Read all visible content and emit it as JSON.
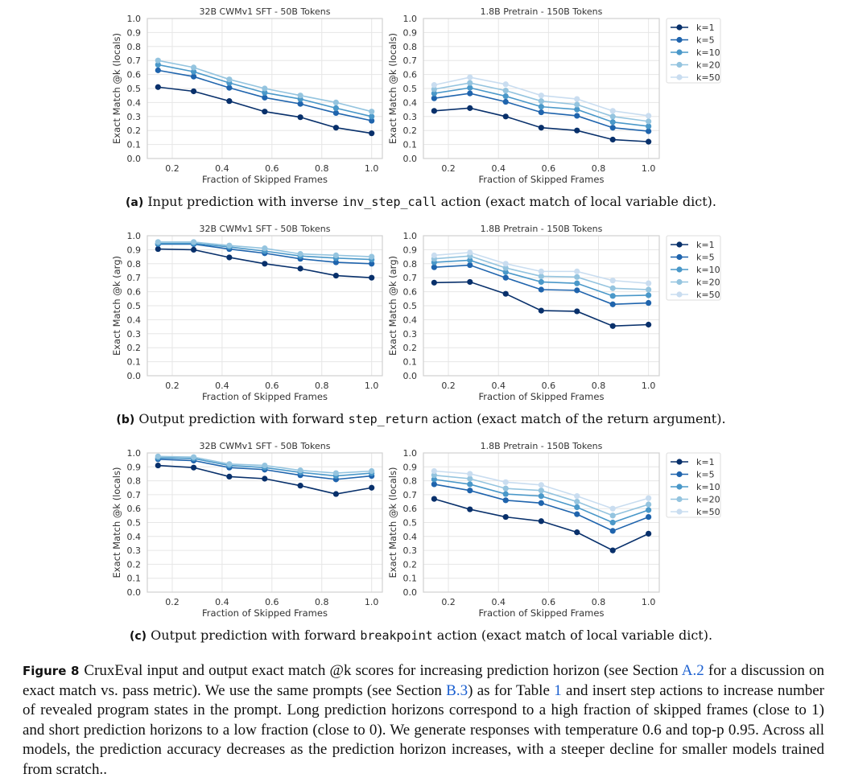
{
  "colors": {
    "k=1": "#08306b",
    "k=5": "#1f64ad",
    "k=10": "#4a98c9",
    "k=20": "#94c4df",
    "k=50": "#c9ddf0"
  },
  "chart_data": [
    {
      "type": "line",
      "panel": "a-left",
      "title": "32B CWMv1 SFT - 50B Tokens",
      "xlabel": "Fraction of Skipped Frames",
      "ylabel": "Exact Match @k (locals)",
      "xlim": [
        0.1,
        1.043
      ],
      "ylim": [
        0,
        1
      ],
      "grid": true,
      "xticks": [
        "0.2",
        "0.4",
        "0.6",
        "0.8",
        "1.0"
      ],
      "yticks": [
        "0.0",
        "0.1",
        "0.2",
        "0.3",
        "0.4",
        "0.5",
        "0.6",
        "0.7",
        "0.8",
        "0.9",
        "1.0"
      ],
      "x": [
        0.143,
        0.286,
        0.429,
        0.571,
        0.714,
        0.857,
        1.0
      ],
      "series": [
        {
          "name": "k=1",
          "values": [
            0.51,
            0.48,
            0.41,
            0.335,
            0.295,
            0.22,
            0.18
          ]
        },
        {
          "name": "k=5",
          "values": [
            0.63,
            0.585,
            0.505,
            0.435,
            0.39,
            0.325,
            0.27
          ]
        },
        {
          "name": "k=10",
          "values": [
            0.67,
            0.62,
            0.54,
            0.47,
            0.425,
            0.36,
            0.3
          ]
        },
        {
          "name": "k=20",
          "values": [
            0.7,
            0.65,
            0.565,
            0.5,
            0.45,
            0.4,
            0.335
          ]
        }
      ]
    },
    {
      "type": "line",
      "panel": "a-right",
      "title": "1.8B Pretrain - 150B Tokens",
      "xlabel": "Fraction of Skipped Frames",
      "ylabel": "Exact Match @k (locals)",
      "xlim": [
        0.1,
        1.043
      ],
      "ylim": [
        0,
        1
      ],
      "grid": true,
      "legend": "outside-top-right",
      "xticks": [
        "0.2",
        "0.4",
        "0.6",
        "0.8",
        "1.0"
      ],
      "yticks": [
        "0.0",
        "0.1",
        "0.2",
        "0.3",
        "0.4",
        "0.5",
        "0.6",
        "0.7",
        "0.8",
        "0.9",
        "1.0"
      ],
      "x": [
        0.143,
        0.286,
        0.429,
        0.571,
        0.714,
        0.857,
        1.0
      ],
      "series": [
        {
          "name": "k=1",
          "values": [
            0.34,
            0.36,
            0.3,
            0.22,
            0.2,
            0.135,
            0.12
          ]
        },
        {
          "name": "k=5",
          "values": [
            0.43,
            0.465,
            0.405,
            0.33,
            0.305,
            0.22,
            0.195
          ]
        },
        {
          "name": "k=10",
          "values": [
            0.465,
            0.505,
            0.445,
            0.37,
            0.35,
            0.26,
            0.23
          ]
        },
        {
          "name": "k=20",
          "values": [
            0.495,
            0.54,
            0.485,
            0.41,
            0.385,
            0.3,
            0.265
          ]
        },
        {
          "name": "k=50",
          "values": [
            0.525,
            0.58,
            0.53,
            0.45,
            0.425,
            0.34,
            0.305
          ]
        }
      ]
    },
    {
      "type": "line",
      "panel": "b-left",
      "title": "32B CWMv1 SFT - 50B Tokens",
      "xlabel": "Fraction of Skipped Frames",
      "ylabel": "Exact Match @k (arg)",
      "xlim": [
        0.1,
        1.043
      ],
      "ylim": [
        0,
        1
      ],
      "grid": true,
      "xticks": [
        "0.2",
        "0.4",
        "0.6",
        "0.8",
        "1.0"
      ],
      "yticks": [
        "0.0",
        "0.1",
        "0.2",
        "0.3",
        "0.4",
        "0.5",
        "0.6",
        "0.7",
        "0.8",
        "0.9",
        "1.0"
      ],
      "x": [
        0.143,
        0.286,
        0.429,
        0.571,
        0.714,
        0.857,
        1.0
      ],
      "series": [
        {
          "name": "k=1",
          "values": [
            0.905,
            0.9,
            0.845,
            0.8,
            0.765,
            0.715,
            0.7
          ]
        },
        {
          "name": "k=5",
          "values": [
            0.94,
            0.94,
            0.905,
            0.875,
            0.835,
            0.81,
            0.8
          ]
        },
        {
          "name": "k=10",
          "values": [
            0.945,
            0.945,
            0.92,
            0.89,
            0.855,
            0.84,
            0.83
          ]
        },
        {
          "name": "k=20",
          "values": [
            0.955,
            0.955,
            0.93,
            0.91,
            0.87,
            0.86,
            0.85
          ]
        }
      ]
    },
    {
      "type": "line",
      "panel": "b-right",
      "title": "1.8B Pretrain - 150B Tokens",
      "xlabel": "Fraction of Skipped Frames",
      "ylabel": "Exact Match @k (arg)",
      "xlim": [
        0.1,
        1.043
      ],
      "ylim": [
        0,
        1
      ],
      "grid": true,
      "legend": "outside-top-right",
      "xticks": [
        "0.2",
        "0.4",
        "0.6",
        "0.8",
        "1.0"
      ],
      "yticks": [
        "0.0",
        "0.1",
        "0.2",
        "0.3",
        "0.4",
        "0.5",
        "0.6",
        "0.7",
        "0.8",
        "0.9",
        "1.0"
      ],
      "x": [
        0.143,
        0.286,
        0.429,
        0.571,
        0.714,
        0.857,
        1.0
      ],
      "series": [
        {
          "name": "k=1",
          "values": [
            0.665,
            0.67,
            0.585,
            0.465,
            0.46,
            0.355,
            0.365
          ]
        },
        {
          "name": "k=5",
          "values": [
            0.775,
            0.79,
            0.7,
            0.615,
            0.61,
            0.51,
            0.52
          ]
        },
        {
          "name": "k=10",
          "values": [
            0.81,
            0.825,
            0.74,
            0.67,
            0.66,
            0.57,
            0.575
          ]
        },
        {
          "name": "k=20",
          "values": [
            0.835,
            0.855,
            0.77,
            0.71,
            0.705,
            0.625,
            0.615
          ]
        },
        {
          "name": "k=50",
          "values": [
            0.86,
            0.88,
            0.8,
            0.745,
            0.745,
            0.68,
            0.66
          ]
        }
      ]
    },
    {
      "type": "line",
      "panel": "c-left",
      "title": "32B CWMv1 SFT - 50B Tokens",
      "xlabel": "Fraction of Skipped Frames",
      "ylabel": "Exact Match @k (locals)",
      "xlim": [
        0.1,
        1.043
      ],
      "ylim": [
        0,
        1
      ],
      "grid": true,
      "xticks": [
        "0.2",
        "0.4",
        "0.6",
        "0.8",
        "1.0"
      ],
      "yticks": [
        "0.0",
        "0.1",
        "0.2",
        "0.3",
        "0.4",
        "0.5",
        "0.6",
        "0.7",
        "0.8",
        "0.9",
        "1.0"
      ],
      "x": [
        0.143,
        0.286,
        0.429,
        0.571,
        0.714,
        0.857,
        1.0
      ],
      "series": [
        {
          "name": "k=1",
          "values": [
            0.91,
            0.895,
            0.83,
            0.815,
            0.765,
            0.705,
            0.75
          ]
        },
        {
          "name": "k=5",
          "values": [
            0.955,
            0.945,
            0.895,
            0.88,
            0.84,
            0.81,
            0.835
          ]
        },
        {
          "name": "k=10",
          "values": [
            0.965,
            0.96,
            0.91,
            0.895,
            0.86,
            0.835,
            0.855
          ]
        },
        {
          "name": "k=20",
          "values": [
            0.975,
            0.97,
            0.92,
            0.91,
            0.875,
            0.855,
            0.87
          ]
        }
      ]
    },
    {
      "type": "line",
      "panel": "c-right",
      "title": "1.8B Pretrain - 150B Tokens",
      "xlabel": "Fraction of Skipped Frames",
      "ylabel": "Exact Match @k (locals)",
      "xlim": [
        0.1,
        1.043
      ],
      "ylim": [
        0,
        1
      ],
      "grid": true,
      "legend": "outside-top-right",
      "xticks": [
        "0.2",
        "0.4",
        "0.6",
        "0.8",
        "1.0"
      ],
      "yticks": [
        "0.0",
        "0.1",
        "0.2",
        "0.3",
        "0.4",
        "0.5",
        "0.6",
        "0.7",
        "0.8",
        "0.9",
        "1.0"
      ],
      "x": [
        0.143,
        0.286,
        0.429,
        0.571,
        0.714,
        0.857,
        1.0
      ],
      "series": [
        {
          "name": "k=1",
          "values": [
            0.67,
            0.595,
            0.54,
            0.51,
            0.43,
            0.3,
            0.42
          ]
        },
        {
          "name": "k=5",
          "values": [
            0.775,
            0.73,
            0.66,
            0.64,
            0.56,
            0.44,
            0.54
          ]
        },
        {
          "name": "k=10",
          "values": [
            0.81,
            0.775,
            0.705,
            0.69,
            0.61,
            0.5,
            0.59
          ]
        },
        {
          "name": "k=20",
          "values": [
            0.84,
            0.815,
            0.745,
            0.73,
            0.65,
            0.55,
            0.63
          ]
        },
        {
          "name": "k=50",
          "values": [
            0.87,
            0.85,
            0.79,
            0.77,
            0.69,
            0.6,
            0.675
          ]
        }
      ]
    }
  ],
  "subcaptions": [
    {
      "label": "(a)",
      "pre": "Input prediction with inverse ",
      "code": "inv_step_call",
      "post": " action (exact match of local variable dict)."
    },
    {
      "label": "(b)",
      "pre": "Output prediction with forward ",
      "code": "step_return",
      "post": " action (exact match of the return argument)."
    },
    {
      "label": "(c)",
      "pre": "Output prediction with forward ",
      "code": "breakpoint",
      "post": " action (exact match of local variable dict)."
    }
  ],
  "caption": {
    "label": "Figure 8",
    "t1": "CruxEval input and output exact match @k scores for increasing prediction horizon (see Section ",
    "ref1": "A.2",
    "t2": " for a discussion on exact match vs. pass metric). We use the same prompts (see Section ",
    "ref2": "B.3",
    "t3": ") as for Table ",
    "ref3": "1",
    "t4": " and insert step actions to increase number of revealed program states in the prompt. Long prediction horizons correspond to a high fraction of skipped frames (close to 1) and short prediction horizons to a low fraction (close to 0). We generate responses with temperature 0.6 and top-p 0.95. Across all models, the prediction accuracy decreases as the prediction horizon increases, with a steeper decline for smaller models trained from scratch.."
  }
}
